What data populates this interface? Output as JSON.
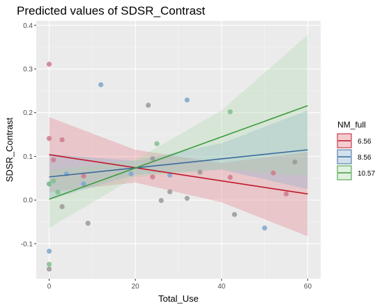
{
  "chart_data": {
    "type": "scatter",
    "title": "Predicted values of SDSR_Contrast",
    "xlabel": "Total_Use",
    "ylabel": "SDSR_Contrast",
    "xlim": [
      -3,
      63
    ],
    "ylim": [
      -0.18,
      0.41
    ],
    "xticks": [
      0,
      20,
      40,
      60
    ],
    "xtick_labels": [
      "0",
      "20",
      "40",
      "60"
    ],
    "yticks": [
      -0.1,
      0.0,
      0.1,
      0.2,
      0.3,
      0.4
    ],
    "ytick_labels": [
      "-0.1",
      "0.0",
      "0.1",
      "0.2",
      "0.3",
      "0.4"
    ],
    "grid": true,
    "legend_title": "NM_full",
    "legend_position": "right",
    "colors": {
      "panel": "#ebebeb",
      "grid_major": "#ffffff",
      "grid_minor": "#f5f5f5"
    },
    "series": [
      {
        "name": "6.56",
        "color": "#c0172b",
        "point_color": "#d07a88",
        "fill": "#e0707a",
        "line": [
          [
            0,
            0.104
          ],
          [
            60,
            0.014
          ]
        ],
        "ci_upper": [
          [
            0,
            0.19
          ],
          [
            20,
            0.115
          ],
          [
            40,
            0.085
          ],
          [
            60,
            0.11
          ]
        ],
        "ci_lower": [
          [
            0,
            0.018
          ],
          [
            20,
            0.04
          ],
          [
            40,
            -0.005
          ],
          [
            60,
            -0.083
          ]
        ],
        "points": [
          [
            0,
            0.311
          ],
          [
            0,
            0.141
          ],
          [
            1,
            0.092
          ],
          [
            3,
            0.138
          ],
          [
            8,
            0.055
          ],
          [
            24,
            0.053
          ],
          [
            42,
            0.052
          ],
          [
            52,
            0.062
          ],
          [
            55,
            0.014
          ]
        ]
      },
      {
        "name": "8.56",
        "color": "#3a6b9c",
        "point_color": "#7fa4cf",
        "fill": "#7fa8cc",
        "line": [
          [
            0,
            0.053
          ],
          [
            60,
            0.115
          ]
        ],
        "ci_upper": [
          [
            0,
            0.105
          ],
          [
            20,
            0.09
          ],
          [
            40,
            0.13
          ],
          [
            60,
            0.205
          ]
        ],
        "ci_lower": [
          [
            0,
            0.001
          ],
          [
            20,
            0.058
          ],
          [
            40,
            0.07
          ],
          [
            60,
            0.025
          ]
        ],
        "points": [
          [
            0,
            0.037
          ],
          [
            0,
            -0.117
          ],
          [
            4,
            0.06
          ],
          [
            8,
            0.037
          ],
          [
            12,
            0.264
          ],
          [
            19,
            0.06
          ],
          [
            28,
            0.057
          ],
          [
            32,
            0.229
          ],
          [
            50,
            -0.064
          ]
        ]
      },
      {
        "name": "10.57",
        "color": "#3c9a3c",
        "point_color": "#7fbf8c",
        "fill": "#a5d6a5",
        "line": [
          [
            0,
            0.002
          ],
          [
            60,
            0.216
          ]
        ],
        "ci_upper": [
          [
            0,
            0.068
          ],
          [
            20,
            0.092
          ],
          [
            40,
            0.205
          ],
          [
            60,
            0.378
          ]
        ],
        "ci_lower": [
          [
            0,
            -0.064
          ],
          [
            20,
            0.053
          ],
          [
            40,
            0.07
          ],
          [
            60,
            0.055
          ]
        ],
        "points": [
          [
            0,
            0.037
          ],
          [
            0,
            -0.147
          ],
          [
            1,
            0.044
          ],
          [
            2,
            0.018
          ],
          [
            25,
            0.129
          ],
          [
            42,
            0.202
          ]
        ]
      },
      {
        "name": "",
        "color": "#999999",
        "point_color": "#999999",
        "fill": "none",
        "points": [
          [
            0,
            -0.158
          ],
          [
            3,
            -0.015
          ],
          [
            9,
            -0.053
          ],
          [
            23,
            0.217
          ],
          [
            24,
            0.095
          ],
          [
            26,
            -0.001
          ],
          [
            28,
            0.019
          ],
          [
            32,
            0.004
          ],
          [
            35,
            0.064
          ],
          [
            43,
            -0.033
          ],
          [
            57,
            0.087
          ]
        ]
      }
    ]
  }
}
